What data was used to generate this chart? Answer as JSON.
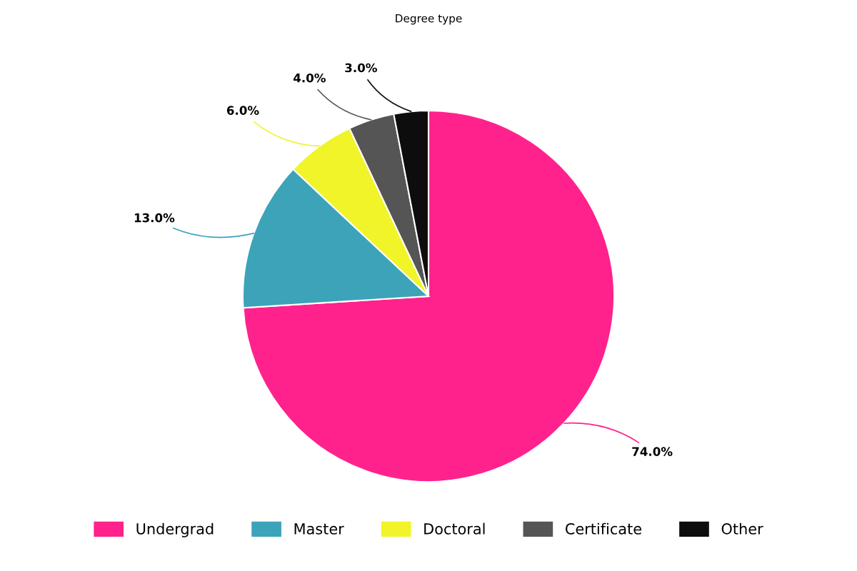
{
  "chart_data": {
    "type": "pie",
    "title": "Degree type",
    "categories": [
      "Undergrad",
      "Master",
      "Doctoral",
      "Certificate",
      "Other"
    ],
    "values": [
      74,
      13,
      6,
      4,
      3
    ],
    "colors": [
      "#ff228c",
      "#3ca3b8",
      "#f0f429",
      "#555555",
      "#0d0d0d"
    ],
    "value_labels": [
      "74.0%",
      "13.0%",
      "6.0%",
      "4.0%",
      "3.0%"
    ],
    "legend": "bottom"
  }
}
